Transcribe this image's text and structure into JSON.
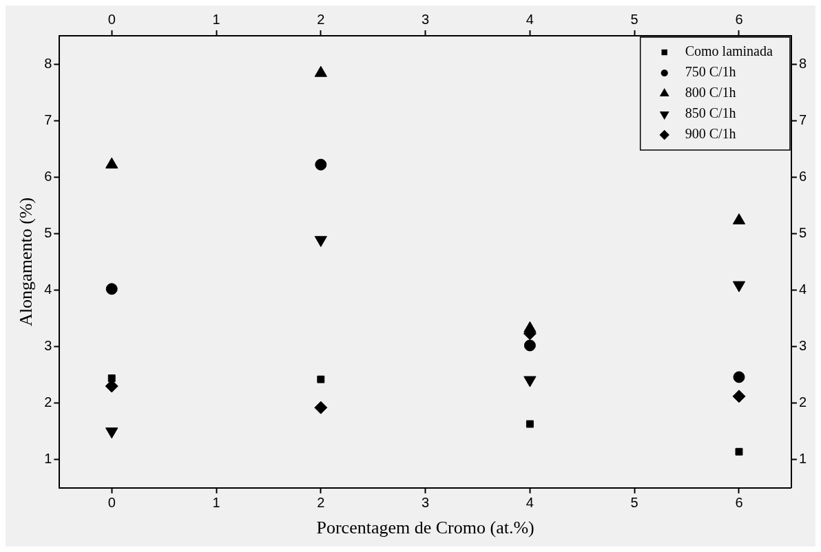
{
  "chart_data": {
    "type": "scatter",
    "xlabel": "Porcentagem de Cromo (at.%)",
    "ylabel": "Alongamento (%)",
    "x": [
      0,
      2,
      4,
      6
    ],
    "xlim": [
      -0.5,
      6.5
    ],
    "xticks": [
      0,
      1,
      2,
      3,
      4,
      5,
      6
    ],
    "x2lim": [
      -0.5,
      6.5
    ],
    "x2ticks": [
      0,
      1,
      2,
      3,
      4,
      5,
      6
    ],
    "ylim": [
      0.5,
      8.5
    ],
    "yticks": [
      1,
      2,
      3,
      4,
      5,
      6,
      7,
      8
    ],
    "y2lim": [
      0.5,
      8.5
    ],
    "y2ticks": [
      1,
      2,
      3,
      4,
      5,
      6,
      7,
      8
    ],
    "grid": false,
    "legend": "top right",
    "series": [
      {
        "name": "Como laminada",
        "color": "#000000",
        "marker": "square",
        "values": [
          2.44,
          2.42,
          1.63,
          1.14
        ]
      },
      {
        "name": "750 C/1h",
        "color": "#000000",
        "marker": "circle",
        "values": [
          4.02,
          6.22,
          3.02,
          2.46
        ]
      },
      {
        "name": "800 C/1h",
        "color": "#000000",
        "marker": "triangle",
        "values": [
          6.22,
          7.84,
          3.32,
          5.23
        ]
      },
      {
        "name": "850 C/1h",
        "color": "#000000",
        "marker": "triangle-down",
        "values": [
          1.5,
          4.89,
          2.41,
          4.09
        ]
      },
      {
        "name": "900 C/1h",
        "color": "#000000",
        "marker": "diamond",
        "values": [
          2.3,
          1.92,
          3.23,
          2.12
        ]
      }
    ]
  }
}
